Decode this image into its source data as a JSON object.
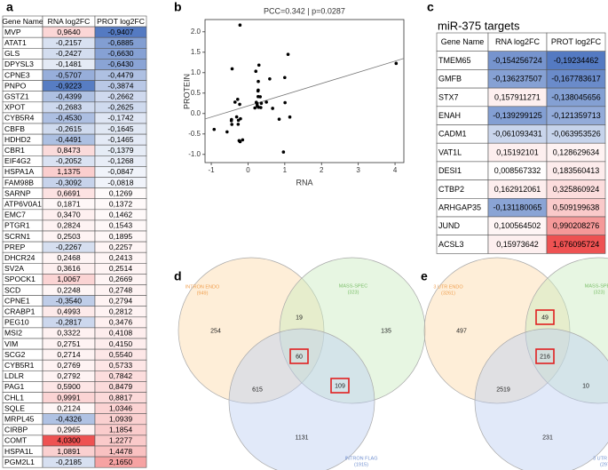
{
  "panel_labels": [
    "a",
    "b",
    "c",
    "d",
    "e"
  ],
  "table_a": {
    "headers": [
      "Gene Name",
      "RNA log2FC",
      "PROT log2FC"
    ],
    "rows": [
      [
        "MVP",
        "0,9640",
        "-0,9407"
      ],
      [
        "ATAT1",
        "-0,2157",
        "-0,6885"
      ],
      [
        "GLS",
        "-0,2427",
        "-0,6630"
      ],
      [
        "DPYSL3",
        "-0,1481",
        "-0,6430"
      ],
      [
        "CPNE3",
        "-0,5707",
        "-0,4479"
      ],
      [
        "PNPO",
        "-0,9223",
        "-0,3874"
      ],
      [
        "GSTZ1",
        "-0,4399",
        "-0,2662"
      ],
      [
        "XPOT",
        "-0,2683",
        "-0,2625"
      ],
      [
        "CYB5R4",
        "-0,4530",
        "-0,1742"
      ],
      [
        "CBFB",
        "-0,2615",
        "-0,1645"
      ],
      [
        "HDHD2",
        "-0,4491",
        "-0,1465"
      ],
      [
        "CBR1",
        "0,8473",
        "-0,1379"
      ],
      [
        "EIF4G2",
        "-0,2052",
        "-0,1268"
      ],
      [
        "HSPA1A",
        "1,1375",
        "-0,0847"
      ],
      [
        "FAM98B",
        "-0,3092",
        "-0,0818"
      ],
      [
        "SARNP",
        "0,6691",
        "0,1269"
      ],
      [
        "ATP6V0A1",
        "0,1871",
        "0,1372"
      ],
      [
        "EMC7",
        "0,3470",
        "0,1462"
      ],
      [
        "PTGR1",
        "0,2824",
        "0,1543"
      ],
      [
        "SCRN1",
        "0,2503",
        "0,1895"
      ],
      [
        "PREP",
        "-0,2267",
        "0,2257"
      ],
      [
        "DHCR24",
        "0,2468",
        "0,2413"
      ],
      [
        "SV2A",
        "0,3616",
        "0,2514"
      ],
      [
        "SPOCK1",
        "1,0067",
        "0,2669"
      ],
      [
        "SCD",
        "0,2248",
        "0,2748"
      ],
      [
        "CPNE1",
        "-0,3540",
        "0,2794"
      ],
      [
        "CRABP1",
        "0,4993",
        "0,2812"
      ],
      [
        "PEG10",
        "-0,2817",
        "0,3476"
      ],
      [
        "MSI2",
        "0,3322",
        "0,4108"
      ],
      [
        "VIM",
        "0,2751",
        "0,4150"
      ],
      [
        "SCG2",
        "0,2714",
        "0,5540"
      ],
      [
        "CYB5R1",
        "0,2769",
        "0,5733"
      ],
      [
        "LDLR",
        "0,2792",
        "0,7842"
      ],
      [
        "PAG1",
        "0,5900",
        "0,8479"
      ],
      [
        "CHL1",
        "0,9991",
        "0,8817"
      ],
      [
        "SQLE",
        "0,2124",
        "1,0346"
      ],
      [
        "MRPL45",
        "-0,4326",
        "1,0939"
      ],
      [
        "CIRBP",
        "0,2965",
        "1,1854"
      ],
      [
        "COMT",
        "4,0300",
        "1,2277"
      ],
      [
        "HSPA1L",
        "1,0891",
        "1,4478"
      ],
      [
        "PGM2L1",
        "-0,2185",
        "2,1650"
      ]
    ]
  },
  "chart_data": {
    "type": "scatter",
    "title": "PCC=0.342 | p=0.0287",
    "x_label": "RNA",
    "y_label": "PROTEIN",
    "x": [
      0.964,
      -0.2157,
      -0.2427,
      -0.1481,
      -0.5707,
      -0.9223,
      -0.4399,
      -0.2683,
      -0.453,
      -0.2615,
      -0.4491,
      0.8473,
      -0.2052,
      1.1375,
      -0.3092,
      0.6691,
      0.1871,
      0.347,
      0.2824,
      0.2503,
      -0.2267,
      0.2468,
      0.3616,
      1.0067,
      0.2248,
      -0.354,
      0.4993,
      -0.2817,
      0.3322,
      0.2751,
      0.2714,
      0.2769,
      0.2792,
      0.59,
      0.9991,
      0.2124,
      -0.4326,
      0.2965,
      4.03,
      1.0891,
      -0.2185
    ],
    "y": [
      -0.9407,
      -0.6885,
      -0.663,
      -0.643,
      -0.4479,
      -0.3874,
      -0.2662,
      -0.2625,
      -0.1742,
      -0.1645,
      -0.1465,
      -0.1379,
      -0.1268,
      -0.0847,
      -0.0818,
      0.1269,
      0.1372,
      0.1462,
      0.1543,
      0.1895,
      0.2257,
      0.2413,
      0.2514,
      0.2669,
      0.2748,
      0.2794,
      0.2812,
      0.3476,
      0.4108,
      0.415,
      0.554,
      0.5733,
      0.7842,
      0.8479,
      0.8817,
      1.0346,
      1.0939,
      1.1854,
      1.2277,
      1.4478,
      2.165
    ],
    "color": "#000000",
    "trendline": true,
    "xlim": [
      -1.17,
      4.24
    ],
    "xticks": [
      -1,
      0,
      1,
      2,
      3,
      4
    ],
    "ylim": [
      -1.2,
      2.3
    ],
    "yticks": [
      {
        "value": -1,
        "label": "-1.0"
      },
      -0.5,
      {
        "value": 0,
        "label": "0.0"
      },
      0.5,
      {
        "value": 1,
        "label": "1.0"
      },
      1.5,
      {
        "value": 2,
        "label": "2.0"
      }
    ]
  },
  "table_c": {
    "title": "miR-375 targets",
    "headers": [
      "Gene Name",
      "RNA log2FC",
      "PROT log2FC"
    ],
    "rows": [
      [
        "TMEM65",
        "-0,154256724",
        "-0,19234462"
      ],
      [
        "GMFB",
        "-0,136237507",
        "-0,167783617"
      ],
      [
        "STX7",
        "0,157911271",
        "-0,138045656"
      ],
      [
        "ENAH",
        "-0,139299125",
        "-0,121359713"
      ],
      [
        "CADM1",
        "-0,061093431",
        "-0,063953526"
      ],
      [
        "VAT1L",
        "0,15192101",
        "0,128629634"
      ],
      [
        "DESI1",
        "0,008567332",
        "0,183560413"
      ],
      [
        "CTBP2",
        "0,162912061",
        "0,325860924"
      ],
      [
        "ARHGAP35",
        "-0,131180065",
        "0,509199638"
      ],
      [
        "JUND",
        "0,100564502",
        "0,990208276"
      ],
      [
        "ACSL3",
        "0,15973642",
        "1,676095724"
      ]
    ]
  },
  "venn_d": {
    "sets": [
      {
        "label": "INTRON ENDO",
        "count": "(949)"
      },
      {
        "label": "MASS-SPEC",
        "count": "(323)"
      },
      {
        "label": "INTRON FLAG",
        "count": "(1915)"
      }
    ],
    "regions": [
      254,
      19,
      135,
      60,
      615,
      109,
      1131
    ]
  },
  "venn_e": {
    "sets": [
      {
        "label": "3 UTR ENDO",
        "count": "(3261)"
      },
      {
        "label": "MASS-SPEC",
        "count": "(323)"
      },
      {
        "label": "3 UTR FLAG",
        "count": "(2976)"
      }
    ],
    "regions": [
      497,
      49,
      48,
      216,
      2519,
      10,
      231
    ]
  }
}
